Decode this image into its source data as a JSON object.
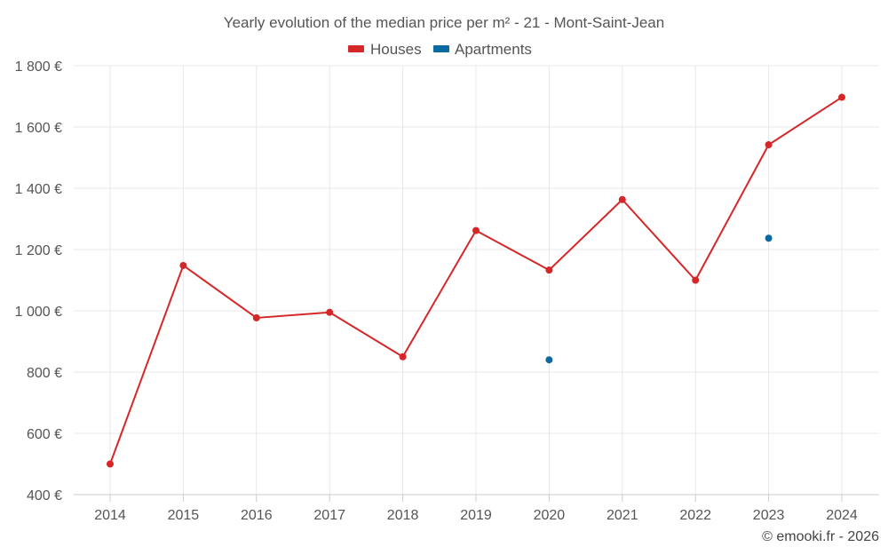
{
  "chart_data": {
    "type": "line",
    "title": "Yearly evolution of the median price per m² - 21 - Mont-Saint-Jean",
    "categories": [
      "2014",
      "2015",
      "2016",
      "2017",
      "2018",
      "2019",
      "2020",
      "2021",
      "2022",
      "2023",
      "2024"
    ],
    "series": [
      {
        "name": "Houses",
        "color": "#d62728",
        "values": [
          500,
          1148,
          977,
          995,
          850,
          1262,
          1133,
          1363,
          1100,
          1542,
          1697
        ]
      },
      {
        "name": "Apartments",
        "color": "#0b6aa2",
        "values": [
          null,
          null,
          null,
          null,
          null,
          null,
          840,
          null,
          null,
          1237,
          null
        ]
      }
    ],
    "ylim": [
      400,
      1800
    ],
    "yticks": [
      400,
      600,
      800,
      1000,
      1200,
      1400,
      1600,
      1800
    ],
    "ytick_labels": [
      "400 €",
      "600 €",
      "800 €",
      "1 000 €",
      "1 200 €",
      "1 400 €",
      "1 600 €",
      "1 800 €"
    ],
    "grid": true,
    "legend": "top-center",
    "credit": "© emooki.fr - 2026"
  }
}
